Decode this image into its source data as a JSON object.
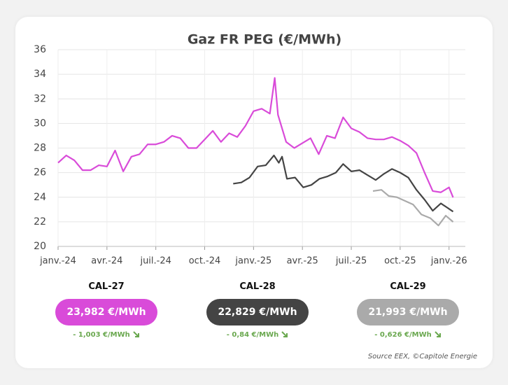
{
  "chart_data": {
    "type": "line",
    "title": "Gaz FR PEG (€/MWh)",
    "xlim": [
      0,
      25
    ],
    "xticks": [
      {
        "value": 0,
        "label": "janv.-24"
      },
      {
        "value": 3,
        "label": "avr.-24"
      },
      {
        "value": 6,
        "label": "juil.-24"
      },
      {
        "value": 9,
        "label": "oct.-24"
      },
      {
        "value": 12,
        "label": "janv.-25"
      },
      {
        "value": 15,
        "label": "avr.-25"
      },
      {
        "value": 18,
        "label": "juil.-25"
      },
      {
        "value": 21,
        "label": "oct.-25"
      },
      {
        "value": 24,
        "label": "janv.-26"
      }
    ],
    "ylim": [
      20,
      36
    ],
    "yticks": [
      20,
      22,
      24,
      26,
      28,
      30,
      32,
      34,
      36
    ],
    "grid": true,
    "series": [
      {
        "name": "CAL-27",
        "color": "#d94bd9",
        "x": [
          0,
          0.5,
          1,
          1.5,
          2,
          2.5,
          3,
          3.5,
          4,
          4.5,
          5,
          5.5,
          6,
          6.5,
          7,
          7.5,
          8,
          8.5,
          9,
          9.5,
          10,
          10.5,
          11,
          11.5,
          12,
          12.5,
          13,
          13.3,
          13.5,
          14,
          14.5,
          15,
          15.5,
          16,
          16.5,
          17,
          17.5,
          18,
          18.5,
          19,
          19.5,
          20,
          20.5,
          21,
          21.5,
          22,
          22.5,
          23,
          23.5,
          24,
          24.25
        ],
        "values": [
          26.8,
          27.4,
          27.0,
          26.2,
          26.2,
          26.6,
          26.5,
          27.8,
          26.1,
          27.3,
          27.5,
          28.3,
          28.3,
          28.5,
          29.0,
          28.8,
          28.0,
          28.0,
          28.7,
          29.4,
          28.5,
          29.2,
          28.9,
          29.8,
          31.0,
          31.2,
          30.8,
          33.7,
          30.7,
          28.5,
          28.0,
          28.4,
          28.8,
          27.5,
          29.0,
          28.8,
          30.5,
          29.6,
          29.3,
          28.8,
          28.7,
          28.7,
          28.9,
          28.6,
          28.2,
          27.6,
          26.0,
          24.5,
          24.4,
          24.8,
          23.982
        ]
      },
      {
        "name": "CAL-28",
        "color": "#444444",
        "x": [
          10.75,
          11.25,
          11.75,
          12.25,
          12.75,
          13.25,
          13.55,
          13.75,
          14.05,
          14.55,
          15.05,
          15.55,
          16.05,
          16.55,
          17.05,
          17.5,
          18.0,
          18.5,
          19.0,
          19.5,
          20.0,
          20.5,
          21.0,
          21.5,
          22.0,
          22.5,
          23.0,
          23.5,
          24.25
        ],
        "values": [
          25.1,
          25.2,
          25.6,
          26.5,
          26.6,
          27.4,
          26.8,
          27.3,
          25.5,
          25.6,
          24.8,
          25.0,
          25.5,
          25.7,
          26.0,
          26.7,
          26.1,
          26.2,
          25.8,
          25.4,
          25.9,
          26.3,
          26.0,
          25.6,
          24.6,
          23.8,
          22.9,
          23.5,
          22.829
        ]
      },
      {
        "name": "CAL-29",
        "color": "#aaaaaa",
        "x": [
          19.33,
          19.85,
          20.3,
          20.8,
          21.3,
          21.8,
          22.3,
          22.85,
          23.35,
          23.8,
          24.25
        ],
        "values": [
          24.5,
          24.6,
          24.1,
          24.0,
          23.7,
          23.4,
          22.6,
          22.3,
          21.7,
          22.5,
          21.993
        ]
      }
    ]
  },
  "cards": [
    {
      "price": "23,982 €/MWh",
      "change": "- 1,003 €/MWh"
    },
    {
      "price": "22,829 €/MWh",
      "change": "- 0,84 €/MWh"
    },
    {
      "price": "21,993 €/MWh",
      "change": "- 0,626 €/MWh"
    }
  ],
  "source": "Source EEX, ©Capitole Energie"
}
